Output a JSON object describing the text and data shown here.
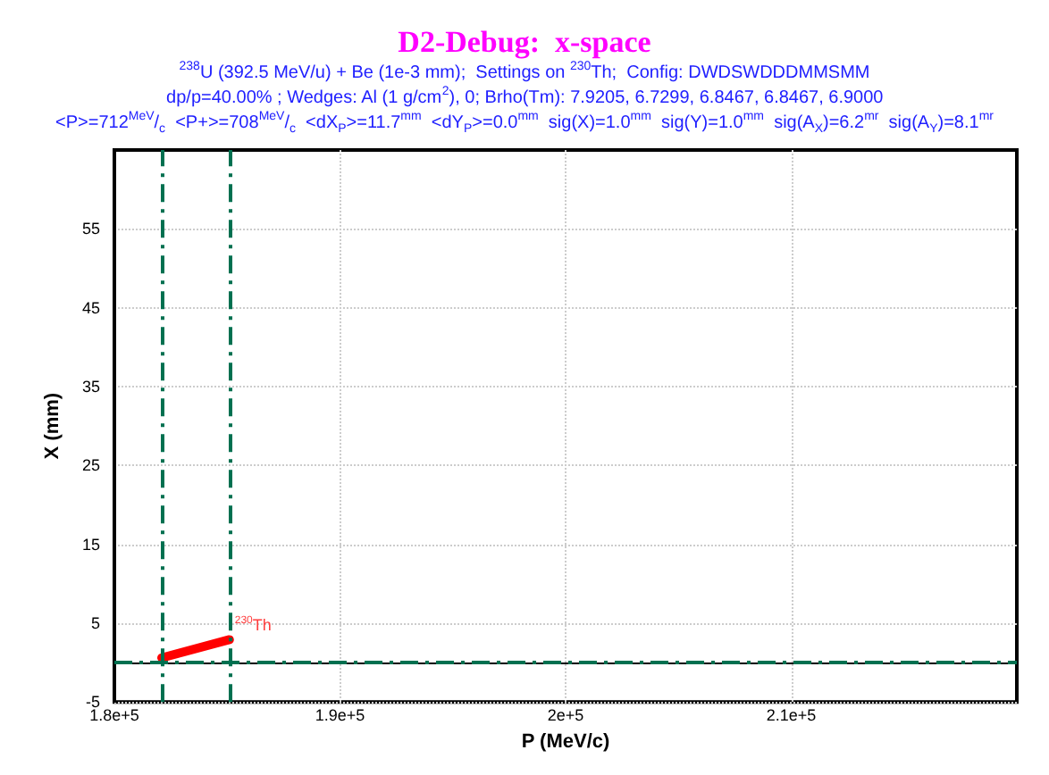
{
  "chart_data": {
    "type": "line",
    "title": "D2-Debug:  x-space",
    "subtitle": "$^{238}$U (392.5 MeV/u) + Be (1e-3 mm);  Settings on $^{230}$Th;  Config: DWDSWDDDMMSMM\ndp/p=40.00% ; Wedges: Al (1 g/cm$^{2}$), 0; Brho(Tm): 7.9205, 6.7299, 6.8467, 6.8467, 6.9000\n<P>=712$^{MeV}$/$_{c}$  <P+>=708$^{MeV}$/$_{c}$  <dX$_{P}$>=11.7$^{mm}$  <dY$_{P}$>=0.0$^{mm}$  sig(X)=1.0$^{mm}$  sig(Y)=1.0$^{mm}$  sig(A$_{X}$)=6.2$^{mr}$  sig(A$_{Y}$)=8.1$^{mr}$",
    "xlabel": "P (MeV/c)",
    "ylabel": "X (mm)",
    "series": [
      {
        "color": "#ff0000",
        "x": [
          182100,
          185100
        ],
        "values": [
          0.6,
          2.9
        ]
      }
    ],
    "annotations": [
      {
        "text": "$^{230}$Th",
        "x": 185100,
        "y": 2.9
      }
    ],
    "xlim": [
      180000,
      220000
    ],
    "xticks": [
      {
        "value": 180000,
        "label": "1.8e+5"
      },
      {
        "value": 190000,
        "label": "1.9e+5"
      },
      {
        "value": 200000,
        "label": "2e+5"
      },
      {
        "value": 210000,
        "label": "2.1e+5"
      }
    ],
    "ylim": [
      -5,
      65
    ],
    "yticks": [
      -5,
      5,
      15,
      25,
      35,
      45,
      55
    ],
    "ref_lines": [
      {
        "axis": "x",
        "value": 182100,
        "color": "#007050",
        "line_style": "dashed"
      },
      {
        "axis": "x",
        "value": 185100,
        "color": "#007050",
        "line_style": "dashed"
      },
      {
        "axis": "y",
        "value": 0,
        "color": "#007050",
        "line_style": "dashed"
      }
    ],
    "grid": true,
    "marker": "none",
    "line_style": "solid"
  }
}
